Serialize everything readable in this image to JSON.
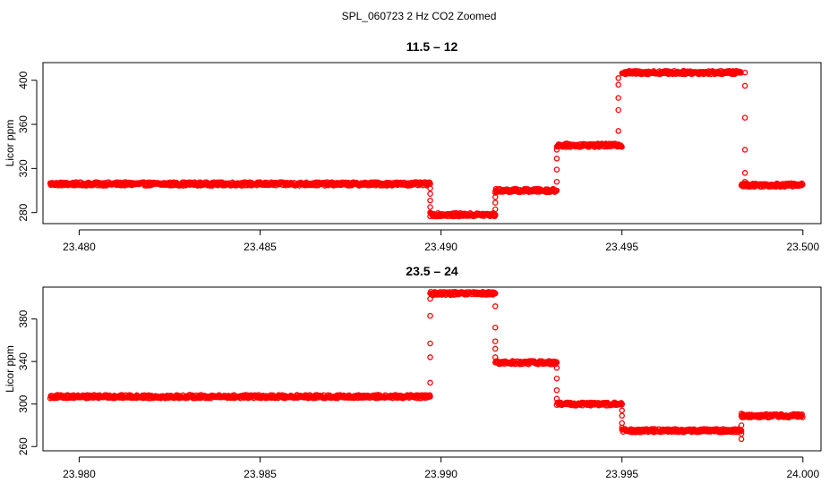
{
  "figure": {
    "title": "SPL_060723  2 Hz CO2 Zoomed"
  },
  "chart_data": [
    {
      "type": "scatter",
      "title": "11.5 – 12",
      "xlabel": "",
      "ylabel": "Licor ppm",
      "xlim": [
        23.479,
        23.5005
      ],
      "ylim": [
        270,
        416
      ],
      "xticks": [
        23.48,
        23.485,
        23.49,
        23.495,
        23.5
      ],
      "xtick_labels": [
        "23.480",
        "23.485",
        "23.490",
        "23.495",
        "23.500"
      ],
      "yticks": [
        280,
        320,
        360,
        400
      ],
      "ytick_labels": [
        "280",
        "320",
        "360",
        "400"
      ],
      "grid": false,
      "marker_color": "#ff0000",
      "segments": [
        {
          "x0": 23.4792,
          "x1": 23.4897,
          "y": 306
        },
        {
          "x0": 23.4897,
          "x1": 23.4915,
          "y": 278
        },
        {
          "x0": 23.4915,
          "x1": 23.4932,
          "y": 300
        },
        {
          "x0": 23.4932,
          "x1": 23.495,
          "y": 341
        },
        {
          "x0": 23.495,
          "x1": 23.4983,
          "y": 407
        },
        {
          "x0": 23.4983,
          "x1": 23.5,
          "y": 305
        }
      ],
      "transitions": [
        {
          "x": 23.4897,
          "values": [
            306,
            302,
            297,
            291,
            285,
            280
          ]
        },
        {
          "x": 23.4915,
          "values": [
            278,
            283,
            289,
            294,
            298
          ]
        },
        {
          "x": 23.4932,
          "values": [
            300,
            308,
            319,
            329,
            337
          ]
        },
        {
          "x": 23.4949,
          "values": [
            341,
            354,
            373,
            384,
            396,
            402
          ]
        },
        {
          "x": 23.4984,
          "values": [
            407,
            395,
            366,
            337,
            316,
            308
          ]
        }
      ]
    },
    {
      "type": "scatter",
      "title": "23.5 – 24",
      "xlabel": "",
      "ylabel": "Licor ppm",
      "xlim": [
        23.979,
        24.0005
      ],
      "ylim": [
        256,
        410
      ],
      "xticks": [
        23.98,
        23.985,
        23.99,
        23.995,
        24.0
      ],
      "xtick_labels": [
        "23.980",
        "23.985",
        "23.990",
        "23.995",
        "24.000"
      ],
      "yticks": [
        260,
        300,
        340,
        380
      ],
      "ytick_labels": [
        "260",
        "300",
        "340",
        "380"
      ],
      "grid": false,
      "marker_color": "#ff0000",
      "segments": [
        {
          "x0": 23.9792,
          "x1": 23.9897,
          "y": 307
        },
        {
          "x0": 23.9897,
          "x1": 23.9915,
          "y": 404
        },
        {
          "x0": 23.9915,
          "x1": 23.9932,
          "y": 339
        },
        {
          "x0": 23.9932,
          "x1": 23.995,
          "y": 300
        },
        {
          "x0": 23.995,
          "x1": 23.9983,
          "y": 275
        },
        {
          "x0": 23.9983,
          "x1": 24.0,
          "y": 289
        }
      ],
      "transitions": [
        {
          "x": 23.9897,
          "values": [
            307,
            320,
            344,
            357,
            383,
            399
          ]
        },
        {
          "x": 23.9915,
          "values": [
            404,
            392,
            372,
            359,
            352,
            344
          ]
        },
        {
          "x": 23.9932,
          "values": [
            339,
            334,
            324,
            313,
            305
          ]
        },
        {
          "x": 23.995,
          "values": [
            300,
            294,
            289,
            282,
            278
          ]
        },
        {
          "x": 23.9983,
          "values": [
            275,
            267,
            272,
            280,
            291
          ]
        }
      ]
    }
  ]
}
